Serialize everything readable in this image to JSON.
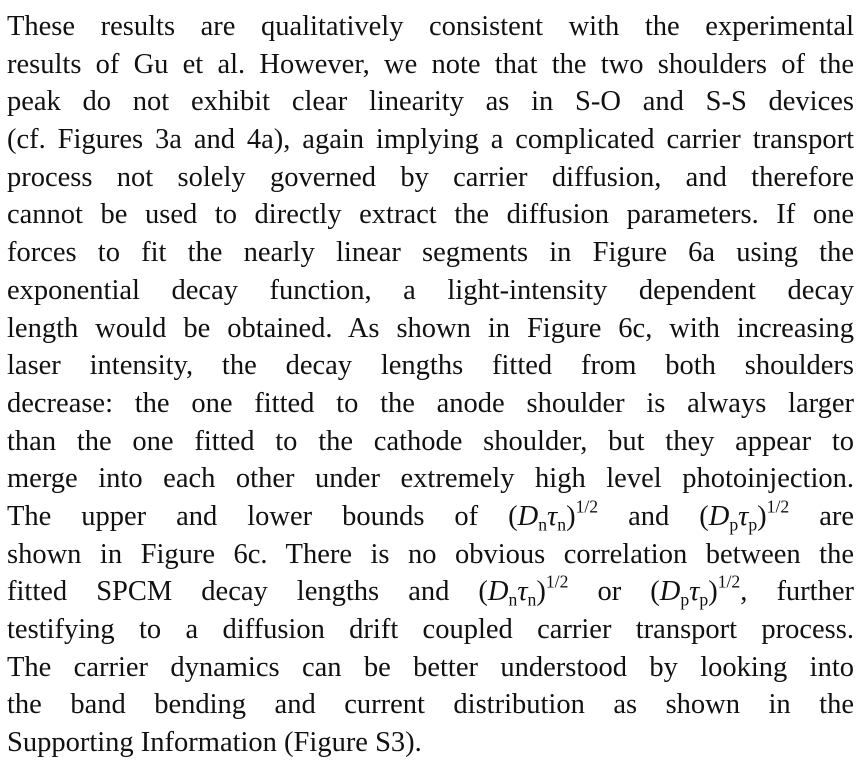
{
  "paragraph": {
    "lines": [
      [
        "These results are qualitatively consistent with the experimental"
      ],
      [
        "results of Gu et al. However, we note that the two shoulders of the"
      ],
      [
        "peak do not exhibit clear linearity as in S-O and S-S devices"
      ],
      [
        "(cf. Figures 3a and 4a), again implying a complicated carrier transport"
      ],
      [
        "process not solely governed by carrier diffusion, and therefore"
      ],
      [
        "cannot be used to directly extract the diffusion parameters. If one"
      ],
      [
        "forces to fit the nearly linear segments in Figure 6a using the"
      ],
      [
        "exponential decay function, a light-intensity dependent decay"
      ],
      [
        "length would be obtained. As shown in Figure 6c, with increasing"
      ],
      [
        "laser intensity, the decay lengths fitted from both shoulders"
      ],
      [
        "decrease: the one fitted to the anode shoulder is always larger"
      ],
      [
        "than the one fitted to the cathode shoulder, but they appear to"
      ],
      [
        "merge into each other under extremely high level photoinjection."
      ],
      [
        "The upper and lower bounds of (",
        {
          "text": "D",
          "style": "italic"
        },
        {
          "text": "n",
          "style": "sub"
        },
        {
          "text": "τ",
          "style": "italic"
        },
        {
          "text": "n",
          "style": "sub"
        },
        ")",
        {
          "text": "1/2",
          "style": "sup"
        },
        " and (",
        {
          "text": "D",
          "style": "italic"
        },
        {
          "text": "p",
          "style": "sub"
        },
        {
          "text": "τ",
          "style": "italic"
        },
        {
          "text": "p",
          "style": "sub"
        },
        ")",
        {
          "text": "1/2",
          "style": "sup"
        },
        " are"
      ],
      [
        "shown in Figure 6c. There is no obvious correlation between the"
      ],
      [
        "fitted SPCM decay lengths and (",
        {
          "text": "D",
          "style": "italic"
        },
        {
          "text": "n",
          "style": "sub"
        },
        {
          "text": "τ",
          "style": "italic"
        },
        {
          "text": "n",
          "style": "sub"
        },
        ")",
        {
          "text": "1/2",
          "style": "sup"
        },
        " or (",
        {
          "text": "D",
          "style": "italic"
        },
        {
          "text": "p",
          "style": "sub"
        },
        {
          "text": "τ",
          "style": "italic"
        },
        {
          "text": "p",
          "style": "sub"
        },
        ")",
        {
          "text": "1/2",
          "style": "sup"
        },
        ", further"
      ],
      [
        "testifying to a diffusion drift coupled carrier transport process."
      ],
      [
        "The carrier dynamics can be better understood by looking into"
      ],
      [
        "the band bending and current distribution as shown in the"
      ],
      [
        "Supporting Information (Figure S3)."
      ]
    ]
  }
}
